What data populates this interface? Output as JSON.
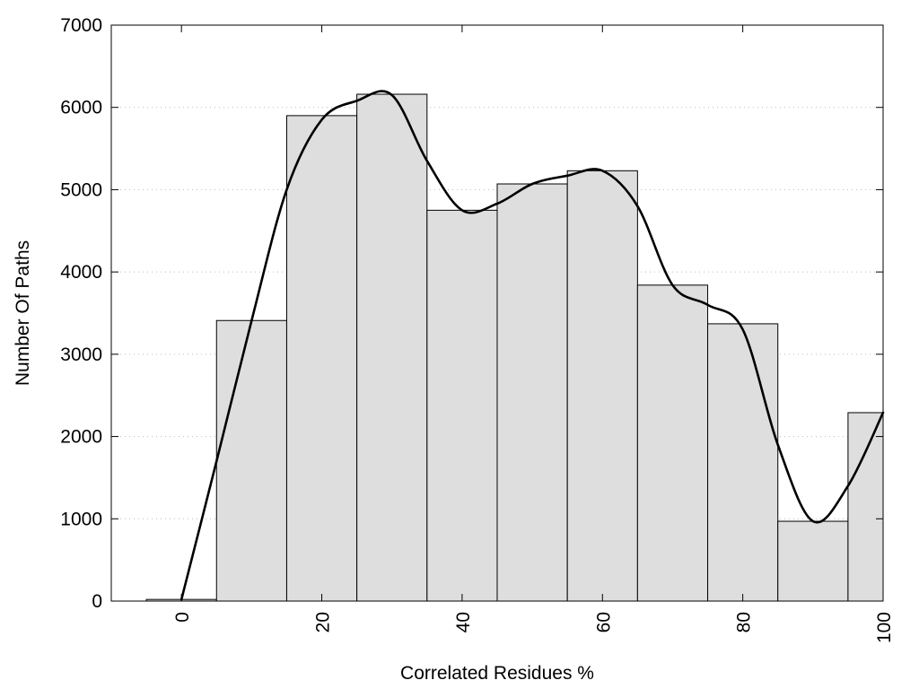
{
  "chart_data": {
    "type": "bar",
    "xlabel": "Correlated Residues %",
    "ylabel": "Number Of Paths",
    "xlim": [
      -10,
      100
    ],
    "ylim": [
      0,
      7000
    ],
    "xticks": [
      0,
      20,
      40,
      60,
      80,
      100
    ],
    "yticks": [
      0,
      1000,
      2000,
      3000,
      4000,
      5000,
      6000,
      7000
    ],
    "bin_width": 10,
    "grid": true,
    "bins": [
      {
        "x": 0,
        "value": 20
      },
      {
        "x": 10,
        "value": 3410
      },
      {
        "x": 20,
        "value": 5900
      },
      {
        "x": 30,
        "value": 6160
      },
      {
        "x": 40,
        "value": 4750
      },
      {
        "x": 50,
        "value": 5070
      },
      {
        "x": 60,
        "value": 5230
      },
      {
        "x": 70,
        "value": 3840
      },
      {
        "x": 80,
        "value": 3370
      },
      {
        "x": 90,
        "value": 970
      },
      {
        "x": 100,
        "value": 2290
      }
    ],
    "smooth_curve": {
      "x": [
        0,
        5,
        10,
        15,
        20,
        25,
        30,
        35,
        40,
        45,
        50,
        55,
        60,
        65,
        70,
        75,
        80,
        85,
        90,
        95,
        100
      ],
      "y": [
        20,
        1700,
        3410,
        5000,
        5850,
        6080,
        6150,
        5350,
        4750,
        4830,
        5070,
        5170,
        5230,
        4800,
        3840,
        3600,
        3300,
        1900,
        970,
        1400,
        2290
      ]
    }
  }
}
